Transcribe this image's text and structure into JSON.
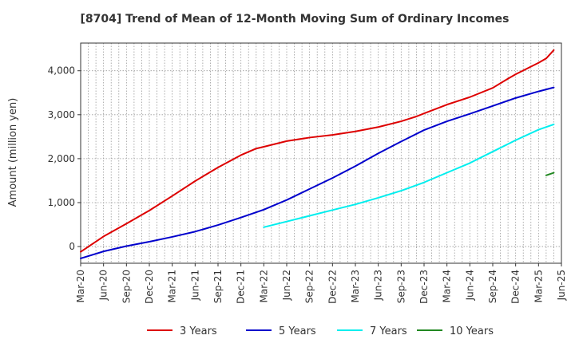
{
  "chart_data": {
    "type": "line",
    "title": "[8704]  Trend of Mean of 12-Month Moving Sum of Ordinary Incomes",
    "xlabel": "",
    "ylabel": "Amount (million yen)",
    "ylim": [
      -380,
      4630
    ],
    "yticks": [
      0,
      1000,
      2000,
      3000,
      4000
    ],
    "ytick_labels": [
      "0",
      "1,000",
      "2,000",
      "3,000",
      "4,000"
    ],
    "x_start": "Mar-20",
    "x_end": "Jun-25",
    "x_months": 63,
    "xtick_labels": [
      "Mar-20",
      "Jun-20",
      "Sep-20",
      "Dec-20",
      "Mar-21",
      "Jun-21",
      "Sep-21",
      "Dec-21",
      "Mar-22",
      "Jun-22",
      "Sep-22",
      "Dec-22",
      "Mar-23",
      "Jun-23",
      "Sep-23",
      "Dec-23",
      "Mar-24",
      "Jun-24",
      "Sep-24",
      "Dec-24",
      "Mar-25",
      "Jun-25"
    ],
    "grid": true,
    "legend_position": "bottom",
    "series": [
      {
        "name": "3 Years",
        "color": "#dd0000",
        "points": [
          [
            0,
            -120
          ],
          [
            3,
            230
          ],
          [
            6,
            520
          ],
          [
            9,
            820
          ],
          [
            12,
            1150
          ],
          [
            15,
            1490
          ],
          [
            18,
            1800
          ],
          [
            21,
            2080
          ],
          [
            23,
            2230
          ],
          [
            24,
            2270
          ],
          [
            27,
            2400
          ],
          [
            30,
            2480
          ],
          [
            33,
            2540
          ],
          [
            36,
            2620
          ],
          [
            39,
            2720
          ],
          [
            42,
            2850
          ],
          [
            44,
            2960
          ],
          [
            45,
            3030
          ],
          [
            48,
            3230
          ],
          [
            51,
            3400
          ],
          [
            54,
            3610
          ],
          [
            56,
            3820
          ],
          [
            57,
            3920
          ],
          [
            60,
            4180
          ],
          [
            61,
            4280
          ],
          [
            62,
            4470
          ]
        ]
      },
      {
        "name": "5 Years",
        "color": "#0000cc",
        "points": [
          [
            0,
            -270
          ],
          [
            3,
            -110
          ],
          [
            6,
            10
          ],
          [
            9,
            110
          ],
          [
            12,
            220
          ],
          [
            15,
            340
          ],
          [
            18,
            490
          ],
          [
            21,
            660
          ],
          [
            24,
            840
          ],
          [
            27,
            1060
          ],
          [
            30,
            1310
          ],
          [
            33,
            1560
          ],
          [
            36,
            1830
          ],
          [
            39,
            2120
          ],
          [
            42,
            2390
          ],
          [
            45,
            2650
          ],
          [
            48,
            2850
          ],
          [
            51,
            3020
          ],
          [
            54,
            3200
          ],
          [
            57,
            3380
          ],
          [
            60,
            3530
          ],
          [
            62,
            3620
          ]
        ]
      },
      {
        "name": "7 Years",
        "color": "#00eeee",
        "points": [
          [
            24,
            440
          ],
          [
            27,
            570
          ],
          [
            30,
            700
          ],
          [
            33,
            830
          ],
          [
            36,
            960
          ],
          [
            39,
            1110
          ],
          [
            42,
            1270
          ],
          [
            45,
            1460
          ],
          [
            48,
            1680
          ],
          [
            51,
            1900
          ],
          [
            54,
            2160
          ],
          [
            57,
            2420
          ],
          [
            60,
            2660
          ],
          [
            62,
            2780
          ]
        ]
      },
      {
        "name": "10 Years",
        "color": "#228822",
        "points": [
          [
            61,
            1620
          ],
          [
            62,
            1680
          ]
        ]
      }
    ]
  }
}
